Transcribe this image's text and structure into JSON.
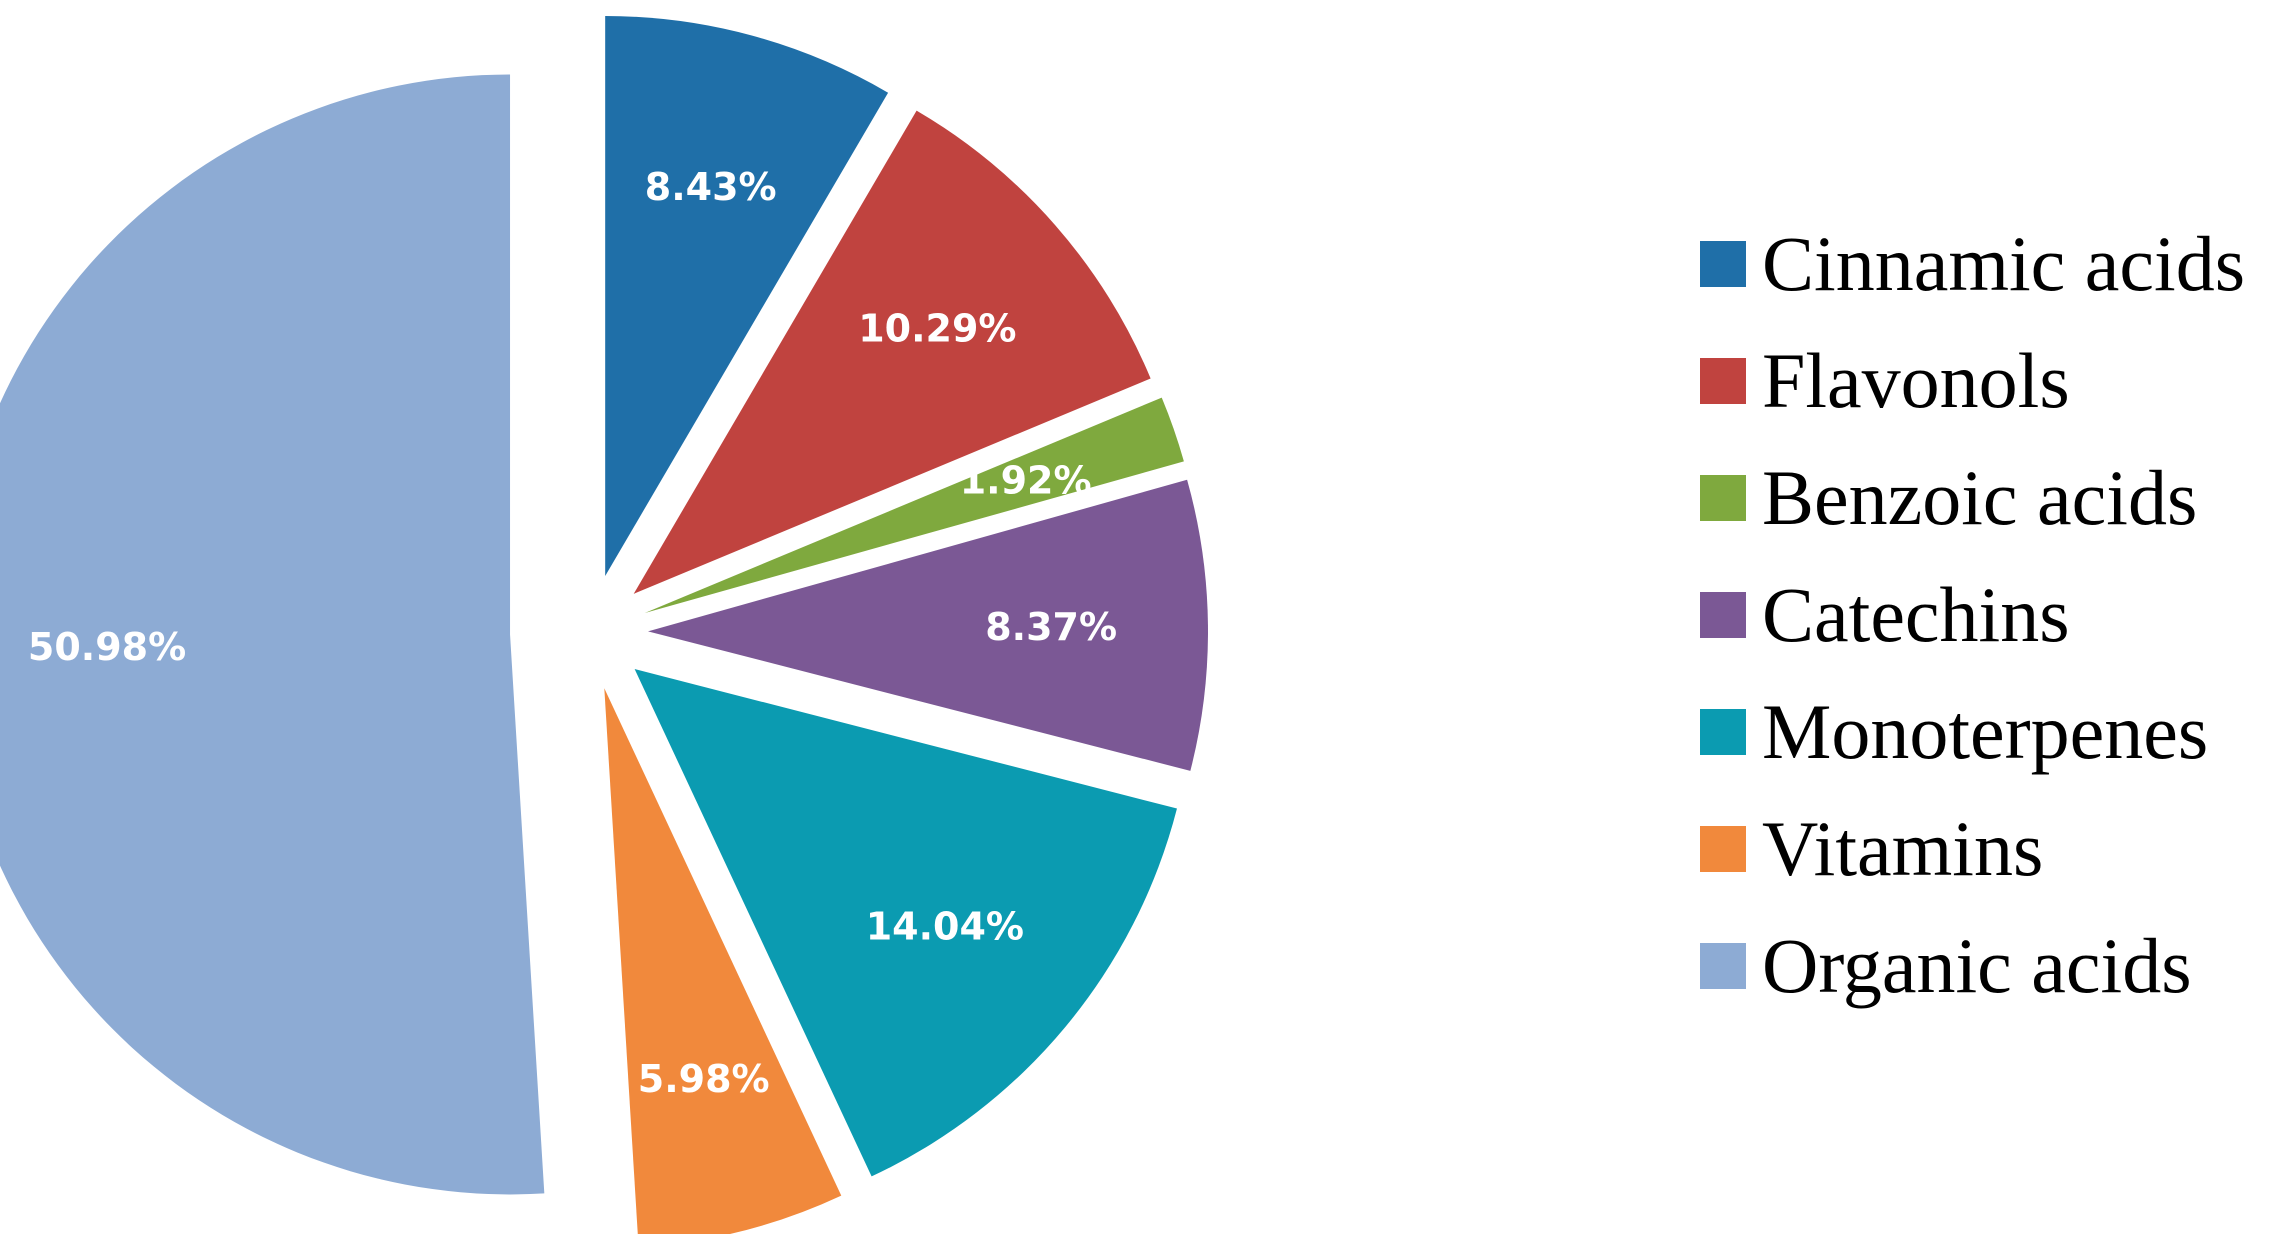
{
  "chart_data": {
    "type": "pie",
    "title": "",
    "legend_position": "right",
    "slices": [
      {
        "name": "Cinnamic acids",
        "value": 8.43,
        "label": "8.43%",
        "color": "#1f6fa8"
      },
      {
        "name": "Flavonols",
        "value": 10.29,
        "label": "10.29%",
        "color": "#c0433f"
      },
      {
        "name": "Benzoic acids",
        "value": 1.92,
        "label": "1.92%",
        "color": "#7fa93e"
      },
      {
        "name": "Catechins",
        "value": 8.37,
        "label": "8.37%",
        "color": "#7b5895"
      },
      {
        "name": "Monoterpenes",
        "value": 14.04,
        "label": "14.04%",
        "color": "#0b9bb1"
      },
      {
        "name": "Vitamins",
        "value": 5.98,
        "label": "5.98%",
        "color": "#f1893c"
      },
      {
        "name": "Organic acids",
        "value": 50.98,
        "label": "50.98%",
        "color": "#8dabd4"
      }
    ]
  }
}
